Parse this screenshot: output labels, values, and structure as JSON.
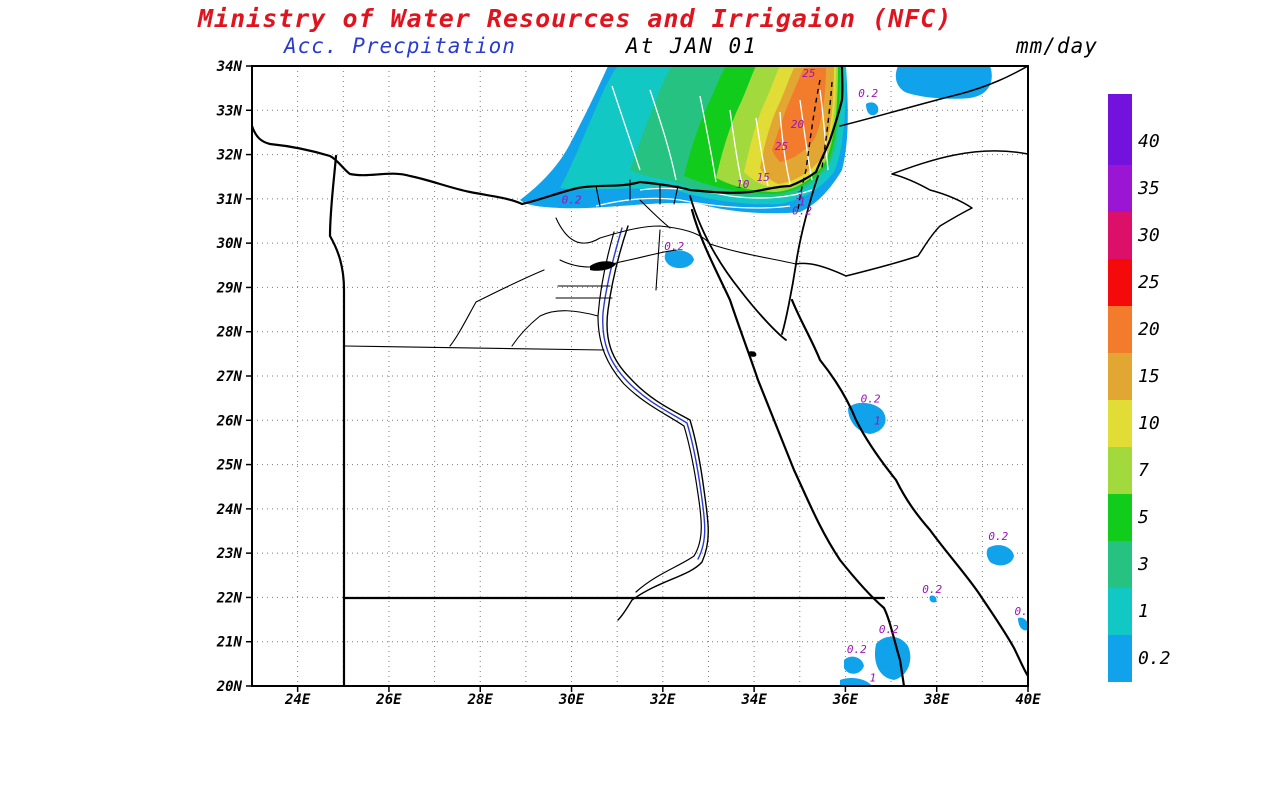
{
  "header": {
    "title": "Ministry of Water Resources and Irrigaion (NFC)",
    "subtitle": "Acc. Precpitation",
    "date": "At JAN 01",
    "units": "mm/day"
  },
  "map": {
    "lat_ticks": [
      "34N",
      "33N",
      "32N",
      "31N",
      "30N",
      "29N",
      "28N",
      "27N",
      "26N",
      "25N",
      "24N",
      "23N",
      "22N",
      "21N",
      "20N"
    ],
    "lon_ticks": [
      "24E",
      "26E",
      "28E",
      "30E",
      "32E",
      "34E",
      "36E",
      "38E",
      "40E"
    ],
    "contour_labels": [
      {
        "text": "25",
        "lon": 35.2,
        "lat": 33.75
      },
      {
        "text": "20",
        "lon": 34.95,
        "lat": 32.6
      },
      {
        "text": "25",
        "lon": 34.6,
        "lat": 32.1
      },
      {
        "text": "15",
        "lon": 34.2,
        "lat": 31.4
      },
      {
        "text": "10",
        "lon": 33.75,
        "lat": 31.25
      },
      {
        "text": "3",
        "lon": 35.0,
        "lat": 31.0
      },
      {
        "text": "1",
        "lon": 35.05,
        "lat": 30.85
      },
      {
        "text": "0.2",
        "lon": 35.05,
        "lat": 30.65
      },
      {
        "text": "0.2",
        "lon": 36.5,
        "lat": 33.3
      },
      {
        "text": "0.2",
        "lon": 30.0,
        "lat": 30.9
      },
      {
        "text": "0.2",
        "lon": 32.25,
        "lat": 29.85
      },
      {
        "text": "0.2",
        "lon": 36.55,
        "lat": 26.4
      },
      {
        "text": "1",
        "lon": 36.7,
        "lat": 25.9
      },
      {
        "text": "0.2",
        "lon": 39.35,
        "lat": 23.3
      },
      {
        "text": "0.2",
        "lon": 37.9,
        "lat": 22.1
      },
      {
        "text": "0.",
        "lon": 39.85,
        "lat": 21.6
      },
      {
        "text": "0.2",
        "lon": 36.95,
        "lat": 21.2
      },
      {
        "text": "0.2",
        "lon": 36.25,
        "lat": 20.75
      },
      {
        "text": "1",
        "lon": 36.6,
        "lat": 20.1
      }
    ]
  },
  "colorbar": {
    "labels": [
      "40",
      "35",
      "30",
      "25",
      "20",
      "15",
      "10",
      "7",
      "5",
      "3",
      "1",
      "0.2"
    ],
    "colors": [
      "#7212dc",
      "#9a16d2",
      "#dc1068",
      "#f40a0a",
      "#f27c2c",
      "#e2a632",
      "#e2dc36",
      "#a2da3e",
      "#12cc1c",
      "#26c282",
      "#12c8c4",
      "#10a2ea"
    ],
    "top_color": "#7212dc"
  }
}
